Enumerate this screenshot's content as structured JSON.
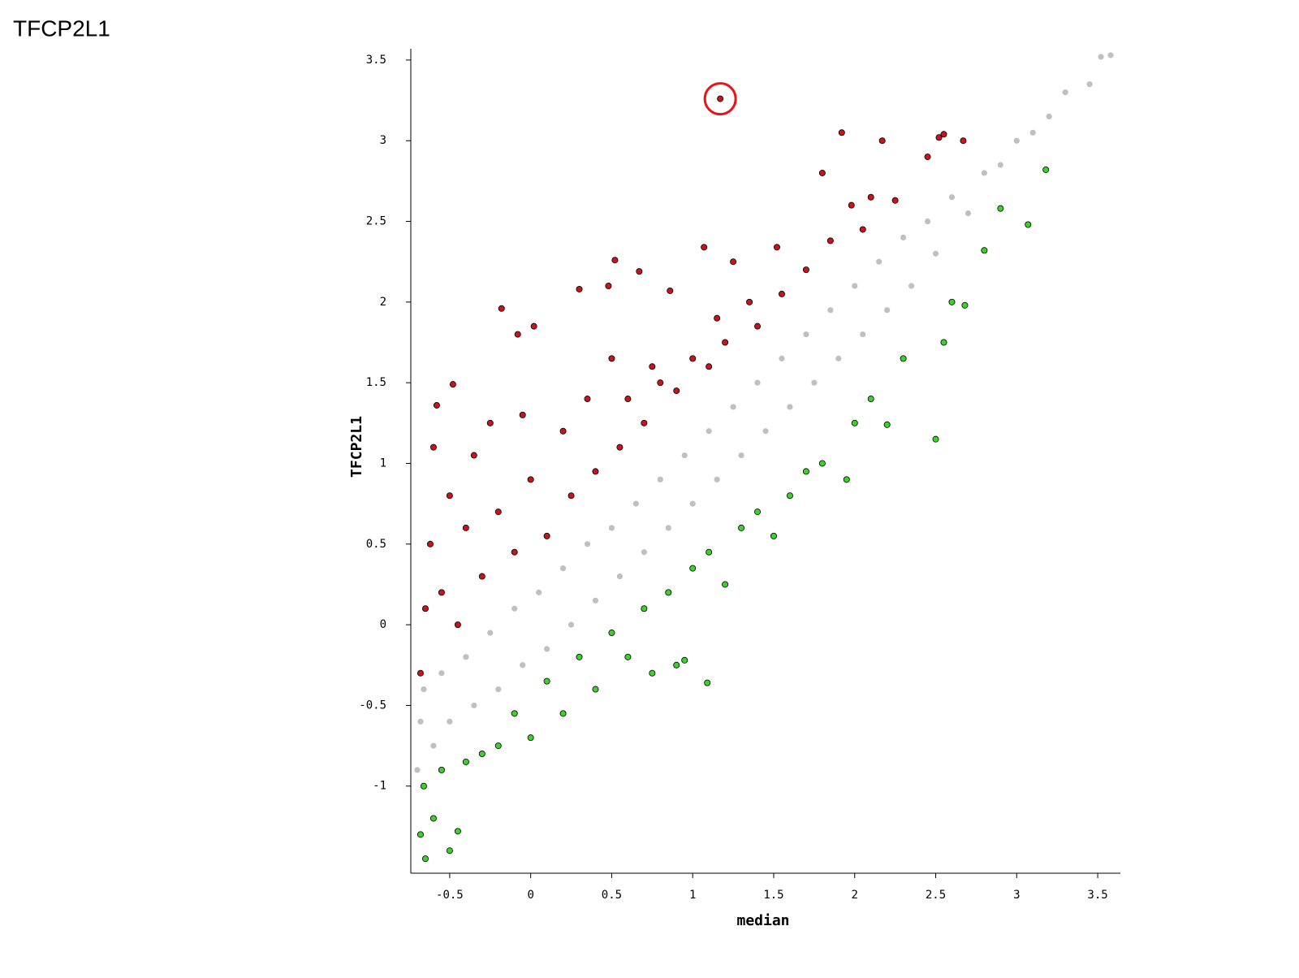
{
  "chart_data": {
    "type": "scatter",
    "title": "TFCP2L1",
    "xlabel": "median",
    "ylabel": "TFCP2L1",
    "xlim": [
      -0.74,
      3.64
    ],
    "ylim": [
      -1.54,
      3.57
    ],
    "xticks": [
      -0.5,
      0,
      0.5,
      1,
      1.5,
      2,
      2.5,
      3,
      3.5
    ],
    "yticks": [
      -1,
      -0.5,
      0,
      0.5,
      1,
      1.5,
      2,
      2.5,
      3,
      3.5
    ],
    "highlight": {
      "x": 1.17,
      "y": 3.26,
      "color": "#e8141c"
    },
    "series": [
      {
        "color": "#c0c0c0",
        "outline": false,
        "x": [
          -0.7,
          -0.68,
          -0.66,
          -0.6,
          -0.55,
          -0.5,
          -0.4,
          -0.35,
          -0.25,
          -0.2,
          -0.1,
          -0.05,
          0.05,
          0.1,
          0.2,
          0.25,
          0.35,
          0.4,
          0.5,
          0.55,
          0.65,
          0.7,
          0.8,
          0.85,
          0.95,
          1.0,
          1.1,
          1.15,
          1.25,
          1.3,
          1.4,
          1.45,
          1.55,
          1.6,
          1.7,
          1.75,
          1.85,
          1.9,
          2.0,
          2.05,
          2.15,
          2.2,
          2.3,
          2.35,
          2.45,
          2.5,
          2.6,
          2.7,
          2.8,
          2.9,
          3.0,
          3.1,
          3.2,
          3.3,
          3.45,
          3.52,
          3.58
        ],
        "y": [
          -0.9,
          -0.6,
          -0.4,
          -0.75,
          -0.3,
          -0.6,
          -0.2,
          -0.5,
          -0.05,
          -0.4,
          0.1,
          -0.25,
          0.2,
          -0.15,
          0.35,
          0.0,
          0.5,
          0.15,
          0.6,
          0.3,
          0.75,
          0.45,
          0.9,
          0.6,
          1.05,
          0.75,
          1.2,
          0.9,
          1.35,
          1.05,
          1.5,
          1.2,
          1.65,
          1.35,
          1.8,
          1.5,
          1.95,
          1.65,
          2.1,
          1.8,
          2.25,
          1.95,
          2.4,
          2.1,
          2.5,
          2.3,
          2.65,
          2.55,
          2.8,
          2.85,
          3.0,
          3.05,
          3.15,
          3.3,
          3.35,
          3.52,
          3.53
        ]
      },
      {
        "color": "#c8141c",
        "outline": true,
        "x": [
          -0.68,
          -0.65,
          -0.62,
          -0.6,
          -0.58,
          -0.55,
          -0.5,
          -0.48,
          -0.45,
          -0.4,
          -0.35,
          -0.3,
          -0.25,
          -0.2,
          -0.18,
          -0.1,
          -0.08,
          -0.05,
          0.0,
          0.02,
          0.1,
          0.2,
          0.25,
          0.3,
          0.35,
          0.4,
          0.48,
          0.5,
          0.55,
          0.52,
          0.6,
          0.67,
          0.7,
          0.75,
          0.8,
          0.86,
          0.9,
          1.0,
          1.07,
          1.1,
          1.15,
          1.17,
          1.2,
          1.25,
          1.35,
          1.4,
          1.52,
          1.55,
          1.7,
          1.8,
          1.85,
          1.92,
          1.98,
          2.05,
          2.1,
          2.17,
          2.25,
          2.45,
          2.52,
          2.55,
          2.67
        ],
        "y": [
          -0.3,
          0.1,
          0.5,
          1.1,
          1.36,
          0.2,
          0.8,
          1.49,
          0.0,
          0.6,
          1.05,
          0.3,
          1.25,
          0.7,
          1.96,
          0.45,
          1.8,
          1.3,
          0.9,
          1.85,
          0.55,
          1.2,
          0.8,
          2.08,
          1.4,
          0.95,
          2.1,
          1.65,
          1.1,
          2.26,
          1.4,
          2.19,
          1.25,
          1.6,
          1.5,
          2.07,
          1.45,
          1.65,
          2.34,
          1.6,
          1.9,
          3.26,
          1.75,
          2.25,
          2.0,
          1.85,
          2.34,
          2.05,
          2.2,
          2.8,
          2.38,
          3.05,
          2.6,
          2.45,
          2.65,
          3.0,
          2.63,
          2.9,
          3.02,
          3.04,
          3.0
        ]
      },
      {
        "color": "#3cd22a",
        "outline": true,
        "x": [
          -0.68,
          -0.66,
          -0.65,
          -0.6,
          -0.55,
          -0.5,
          -0.45,
          -0.4,
          -0.3,
          -0.2,
          -0.1,
          0.0,
          0.1,
          0.2,
          0.3,
          0.4,
          0.5,
          0.6,
          0.7,
          0.75,
          0.85,
          0.9,
          0.95,
          1.0,
          1.09,
          1.1,
          1.2,
          1.3,
          1.4,
          1.5,
          1.6,
          1.7,
          1.8,
          1.95,
          2.0,
          2.1,
          2.2,
          2.3,
          2.5,
          2.55,
          2.6,
          2.68,
          2.8,
          2.9,
          3.07,
          3.18
        ],
        "y": [
          -1.3,
          -1.0,
          -1.45,
          -1.2,
          -0.9,
          -1.4,
          -1.28,
          -0.85,
          -0.8,
          -0.75,
          -0.55,
          -0.7,
          -0.35,
          -0.55,
          -0.2,
          -0.4,
          -0.05,
          -0.2,
          0.1,
          -0.3,
          0.2,
          -0.25,
          -0.22,
          0.35,
          -0.36,
          0.45,
          0.25,
          0.6,
          0.7,
          0.55,
          0.8,
          0.95,
          1.0,
          0.9,
          1.25,
          1.4,
          1.24,
          1.65,
          1.15,
          1.75,
          2.0,
          1.98,
          2.32,
          2.58,
          2.48,
          2.82
        ]
      }
    ]
  }
}
